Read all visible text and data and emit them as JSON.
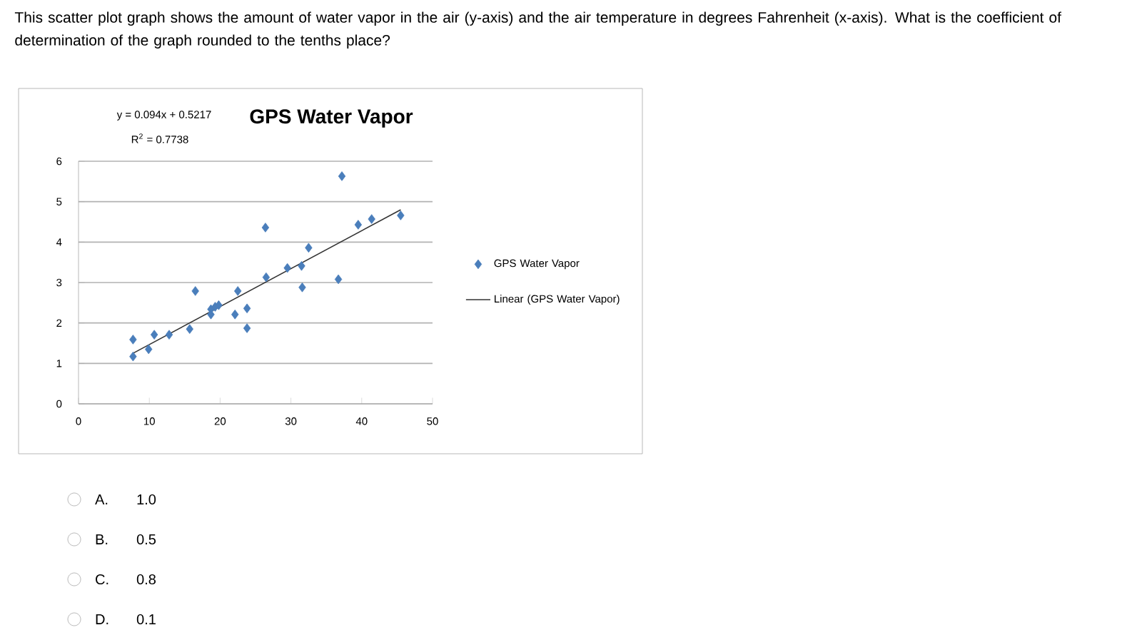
{
  "chart_data": {
    "type": "scatter",
    "title": "GPS Water Vapor",
    "annotations": [
      "This scatter plot graph shows the amount of water vapor in the air (y-axis) and the air temperature in degrees Fahrenheit (x-axis). What is the coefficient of determination of the graph rounded to the tenths place?",
      "y = 0.094x + 0.5217",
      "R$^{2}$ = 0.7738",
      "A.",
      "1.0",
      "B.",
      "0.5",
      "C.",
      "0.8",
      "D.",
      "0.1"
    ],
    "series": [
      {
        "name": "GPS Water Vapor",
        "marker": "diamond",
        "color": "#4a7ebb",
        "x": [
          7.7,
          7.7,
          9.9,
          10.7,
          12.8,
          15.7,
          16.5,
          18.7,
          18.7,
          19.3,
          19.8,
          22.5,
          22.1,
          23.8,
          23.8,
          26.4,
          26.5,
          29.5,
          31.5,
          31.6,
          32.5,
          36.7,
          37.2,
          39.5,
          41.4,
          45.5
        ],
        "values": [
          1.59,
          1.17,
          1.35,
          1.71,
          1.71,
          1.85,
          2.79,
          2.34,
          2.21,
          2.4,
          2.44,
          2.79,
          2.21,
          2.36,
          1.87,
          4.36,
          3.13,
          3.36,
          3.41,
          2.88,
          3.86,
          3.08,
          5.63,
          4.43,
          4.57,
          4.66
        ]
      },
      {
        "name": "Linear (GPS Water Vapor)",
        "type": "line",
        "color": "#333333",
        "x": [
          7.7,
          45.5
        ],
        "values": [
          1.25,
          4.8
        ]
      }
    ],
    "xlim": [
      0,
      50
    ],
    "xticks": [
      0,
      10,
      20,
      30,
      40,
      50
    ],
    "ylim": [
      0,
      6
    ],
    "yticks": [
      0,
      1,
      2,
      3,
      4,
      5,
      6
    ],
    "grid": "y",
    "legend": "right"
  }
}
